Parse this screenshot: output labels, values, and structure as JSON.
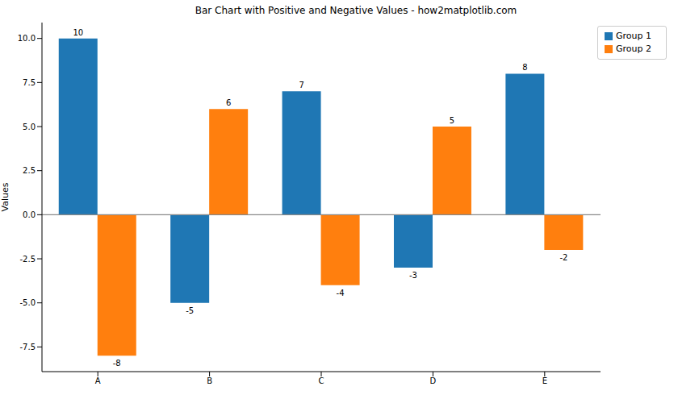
{
  "chart_data": {
    "type": "bar",
    "title": "Bar Chart with Positive and Negative Values - how2matplotlib.com",
    "y_label": "Values",
    "categories": [
      "A",
      "B",
      "C",
      "D",
      "E"
    ],
    "series": [
      {
        "name": "Group 1",
        "color": "#1f77b4",
        "values": [
          10,
          -5,
          7,
          -3,
          8
        ]
      },
      {
        "name": "Group 2",
        "color": "#ff7f0e",
        "values": [
          -8,
          6,
          -4,
          5,
          -2
        ]
      }
    ],
    "ylim": [
      -8.9,
      10.9
    ],
    "yticks": [
      -7.5,
      {
        "value": -5,
        "label": "-5.0"
      },
      -2.5,
      {
        "value": 0,
        "label": "0.0"
      },
      2.5,
      {
        "value": 5,
        "label": "5.0"
      },
      7.5,
      {
        "value": 10,
        "label": "10.0"
      }
    ],
    "data_labels": true,
    "legend": "upper right"
  }
}
